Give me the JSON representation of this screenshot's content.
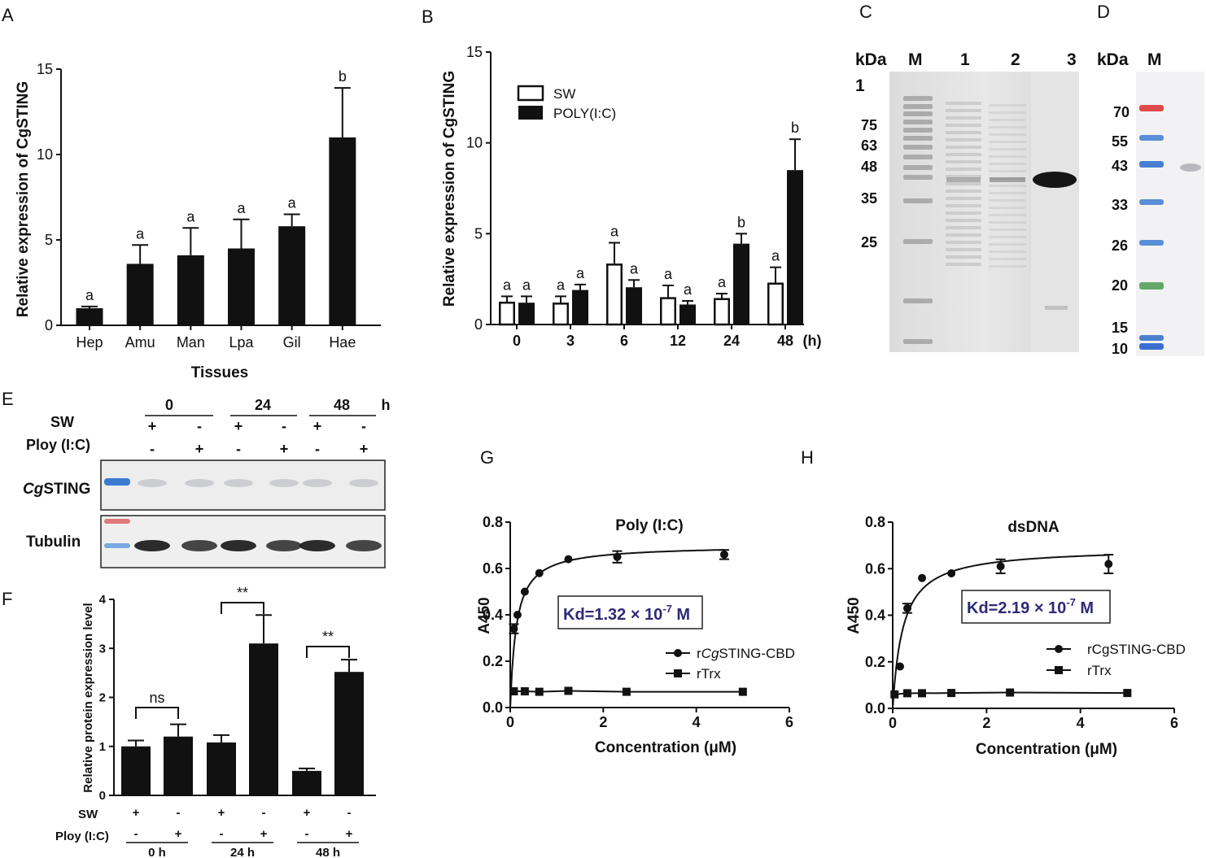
{
  "panels": {
    "A": "A",
    "B": "B",
    "C": "C",
    "D": "D",
    "E": "E",
    "F": "F",
    "G": "G",
    "H": "H"
  },
  "chart_data": [
    {
      "id": "A",
      "type": "bar",
      "categories": [
        "Hep",
        "Amu",
        "Man",
        "Lpa",
        "Gil",
        "Hae"
      ],
      "values": [
        1.0,
        3.6,
        4.1,
        4.5,
        5.8,
        11.0
      ],
      "errors": [
        0.1,
        1.1,
        1.6,
        1.7,
        0.7,
        2.9
      ],
      "letters": [
        "a",
        "a",
        "a",
        "a",
        "a",
        "b"
      ],
      "ylabel": "Relative expression of CgSTING",
      "xlabel": "Tissues",
      "ylim": [
        0,
        15
      ],
      "yticks": [
        "0",
        "5",
        "10",
        "15"
      ]
    },
    {
      "id": "B",
      "type": "bar",
      "categories": [
        "0",
        "3",
        "6",
        "12",
        "24",
        "48"
      ],
      "unit": "(h)",
      "series": [
        {
          "name": "SW",
          "values": [
            1.2,
            1.15,
            3.3,
            1.45,
            1.4,
            2.25
          ],
          "errors": [
            0.35,
            0.4,
            1.2,
            0.7,
            0.3,
            0.9
          ],
          "letters": [
            "a",
            "a",
            "a",
            "a",
            "a",
            "a"
          ]
        },
        {
          "name": "POLY(I:C)",
          "values": [
            1.2,
            1.9,
            2.05,
            1.1,
            4.45,
            8.5
          ],
          "errors": [
            0.35,
            0.3,
            0.4,
            0.2,
            0.55,
            1.7
          ],
          "letters": [
            "a",
            "a",
            "a",
            "a",
            "b",
            "b"
          ]
        }
      ],
      "ylabel": "Relative expression of CgSTING",
      "ylim": [
        0,
        15
      ],
      "yticks": [
        "0",
        "5",
        "10",
        "15"
      ]
    },
    {
      "id": "F",
      "type": "bar",
      "values": [
        1.0,
        1.2,
        1.08,
        3.1,
        0.5,
        2.52
      ],
      "errors": [
        0.12,
        0.25,
        0.15,
        0.58,
        0.05,
        0.25
      ],
      "ylabel": "Relative protein expression level",
      "ylim": [
        0,
        4
      ],
      "yticks": [
        "0",
        "1",
        "2",
        "3",
        "4"
      ],
      "sw_row": [
        "+",
        "-",
        "+",
        "-",
        "+",
        "-"
      ],
      "poly_row": [
        "-",
        "+",
        "-",
        "+",
        "-",
        "+"
      ],
      "row_labels": [
        "SW",
        "Ploy (I:C)"
      ],
      "groups": [
        "0 h",
        "24 h",
        "48 h"
      ],
      "significance": [
        "ns",
        "**",
        "**"
      ]
    },
    {
      "id": "G",
      "type": "line",
      "title": "Poly (I:C)",
      "xlabel": "Concentration (μM)",
      "ylabel": "A450",
      "xlim": [
        0,
        6
      ],
      "ylim": [
        0,
        0.8
      ],
      "xticks": [
        "0",
        "2",
        "4",
        "6"
      ],
      "yticks": [
        "0.0",
        "0.2",
        "0.4",
        "0.6",
        "0.8"
      ],
      "kd_prefix": "Kd=1.32 × 10",
      "kd_exp": "-7",
      "kd_suffix": " M",
      "series": [
        {
          "name": "rCgSTING-CBD",
          "name_parts": [
            "r",
            "Cg",
            "STING-CBD"
          ],
          "bmax": 0.7,
          "kd": 0.132,
          "points": [
            [
              0.078,
              0.34
            ],
            [
              0.156,
              0.4
            ],
            [
              0.3125,
              0.5
            ],
            [
              0.625,
              0.58
            ],
            [
              1.25,
              0.64
            ],
            [
              2.3,
              0.65
            ],
            [
              4.6,
              0.66
            ]
          ],
          "errors": [
            0.02,
            0,
            0,
            0,
            0,
            0.025,
            0.02
          ]
        },
        {
          "name": "rTrx",
          "name_parts": [
            "rTrx",
            "",
            ""
          ],
          "points": [
            [
              0.078,
              0.07
            ],
            [
              0.3125,
              0.07
            ],
            [
              0.625,
              0.068
            ],
            [
              1.25,
              0.072
            ],
            [
              2.5,
              0.068
            ],
            [
              5,
              0.068
            ]
          ],
          "errors": [
            0,
            0,
            0,
            0,
            0,
            0
          ]
        }
      ]
    },
    {
      "id": "H",
      "type": "line",
      "title": "dsDNA",
      "xlabel": "Concentration (μM)",
      "ylabel": "A450",
      "xlim": [
        0,
        6
      ],
      "ylim": [
        0,
        0.8
      ],
      "xticks": [
        "0",
        "2",
        "4",
        "6"
      ],
      "yticks": [
        "0.0",
        "0.2",
        "0.4",
        "0.6",
        "0.8"
      ],
      "kd_prefix": "Kd=2.19 × 10",
      "kd_exp": "-7",
      "kd_suffix": " M",
      "series": [
        {
          "name": "rCgSTING-CBD",
          "name_parts": [
            "rCgSTING-CBD",
            "",
            ""
          ],
          "bmax": 0.69,
          "kd": 0.219,
          "points": [
            [
              0.156,
              0.18
            ],
            [
              0.3125,
              0.43
            ],
            [
              0.625,
              0.56
            ],
            [
              1.25,
              0.58
            ],
            [
              2.3,
              0.61
            ],
            [
              4.6,
              0.62
            ]
          ],
          "errors": [
            0,
            0.02,
            0,
            0,
            0.03,
            0.04
          ]
        },
        {
          "name": "rTrx",
          "name_parts": [
            "rTrx",
            "",
            ""
          ],
          "points": [
            [
              0.039,
              0.06
            ],
            [
              0.3125,
              0.065
            ],
            [
              0.625,
              0.065
            ],
            [
              1.25,
              0.066
            ],
            [
              2.5,
              0.068
            ],
            [
              5,
              0.066
            ]
          ],
          "errors": [
            0,
            0,
            0,
            0,
            0,
            0
          ]
        }
      ]
    }
  ],
  "gel_c": {
    "header": [
      "kDa",
      "M",
      "1",
      "2",
      "3"
    ],
    "markers": [
      "1",
      "75",
      "63",
      "48",
      "35",
      "25"
    ]
  },
  "gel_d": {
    "header": [
      "kDa",
      "M"
    ],
    "markers": [
      "70",
      "55",
      "43",
      "33",
      "26",
      "20",
      "15",
      "10"
    ]
  },
  "blot_e": {
    "times": [
      "0",
      "24",
      "48"
    ],
    "unit": "h",
    "row_labels": [
      "SW",
      "Ploy (I:C)"
    ],
    "sw_row": [
      "+",
      "-",
      "+",
      "-",
      "+",
      "-"
    ],
    "poly_row": [
      "-",
      "+",
      "-",
      "+",
      "-",
      "+"
    ],
    "band_labels": {
      "prefix": "Cg",
      "main": "STING",
      "tubulin": "Tubulin"
    }
  }
}
